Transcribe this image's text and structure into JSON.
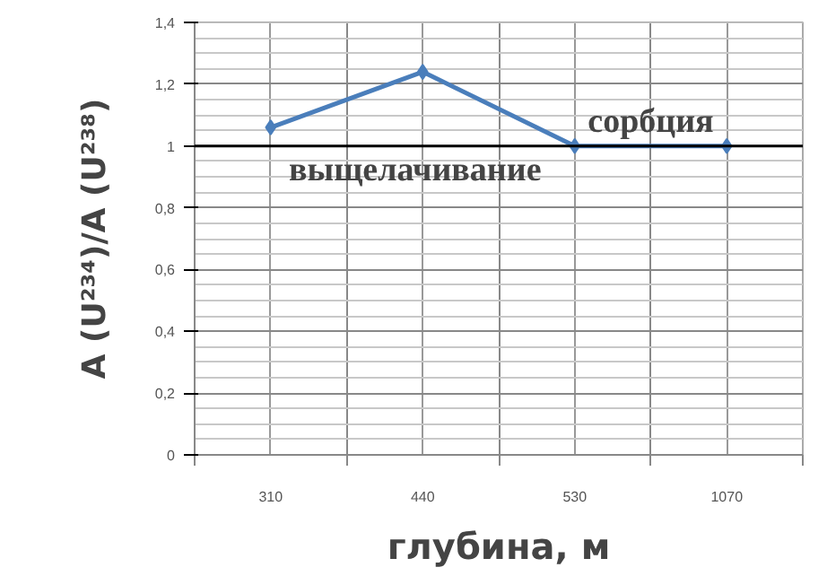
{
  "chart_data": {
    "type": "line",
    "xlabel": "глубина, м",
    "ylabel": "A (U²³⁴)/A (U²³⁸)",
    "categories": [
      "310",
      "440",
      "530",
      "1070"
    ],
    "series": [
      {
        "color": "#4a7ebb",
        "values": [
          1.06,
          1.24,
          1.0,
          1.0
        ]
      }
    ],
    "ylim": [
      0,
      1.4
    ],
    "yticks": [
      0,
      {
        "value": 0.2,
        "label": "0,2"
      },
      {
        "value": 0.4,
        "label": "0,4"
      },
      {
        "value": 0.6,
        "label": "0,6"
      },
      {
        "value": 0.8,
        "label": "0,8"
      },
      1,
      {
        "value": 1.2,
        "label": "1,2"
      },
      {
        "value": 1.4,
        "label": "1,4"
      }
    ],
    "ref_lines": [
      {
        "axis": "y",
        "value": 1,
        "color": "#000000"
      }
    ],
    "annotations": [
      "сорбция",
      "выщелачивание"
    ],
    "grid": true,
    "marker": "diamond"
  }
}
